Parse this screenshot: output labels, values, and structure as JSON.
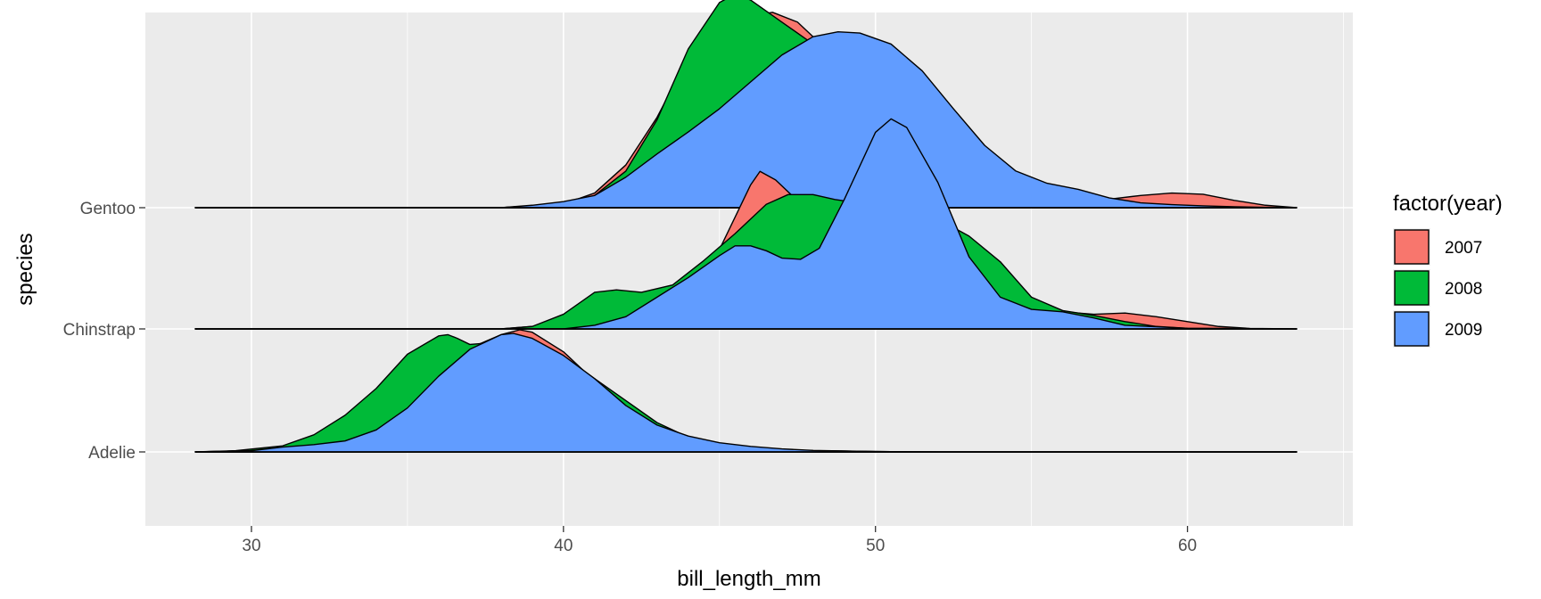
{
  "chart_data": {
    "type": "area",
    "subtype": "ridgeline-density",
    "title": "",
    "xlabel": "bill_length_mm",
    "ylabel": "species",
    "xlim": [
      26.6,
      65.3
    ],
    "x_ticks": [
      30,
      40,
      50,
      60
    ],
    "x_tick_labels": [
      "30",
      "40",
      "50",
      "60"
    ],
    "categories": [
      "Adelie",
      "Chinstrap",
      "Gentoo"
    ],
    "grid": true,
    "legend": {
      "title": "factor(year)",
      "position": "right"
    },
    "density_scale": 1.0,
    "series": [
      {
        "name": "2007",
        "color": "#F8766D"
      },
      {
        "name": "2008",
        "color": "#00BA38"
      },
      {
        "name": "2009",
        "color": "#619CFF"
      }
    ],
    "ridges": [
      {
        "category": "Adelie",
        "year": "2007",
        "range": [
          28.2,
          63.5
        ],
        "points": [
          [
            28.2,
            0
          ],
          [
            30,
            0.01
          ],
          [
            32,
            0.06
          ],
          [
            34,
            0.3
          ],
          [
            36,
            0.69
          ],
          [
            37,
            0.85
          ],
          [
            38,
            0.96
          ],
          [
            38.6,
            1.0
          ],
          [
            39,
            0.98
          ],
          [
            40,
            0.82
          ],
          [
            41,
            0.58
          ],
          [
            42,
            0.37
          ],
          [
            43,
            0.21
          ],
          [
            44,
            0.11
          ],
          [
            45,
            0.06
          ],
          [
            46,
            0.035
          ],
          [
            47,
            0.02
          ],
          [
            48,
            0.01
          ],
          [
            50,
            0.003
          ],
          [
            52,
            0
          ],
          [
            63.5,
            0
          ]
        ]
      },
      {
        "category": "Adelie",
        "year": "2008",
        "range": [
          28.2,
          63.5
        ],
        "points": [
          [
            28.2,
            0
          ],
          [
            29.5,
            0.01
          ],
          [
            31,
            0.05
          ],
          [
            32,
            0.14
          ],
          [
            33,
            0.3
          ],
          [
            34,
            0.52
          ],
          [
            35,
            0.8
          ],
          [
            36,
            0.95
          ],
          [
            36.3,
            0.96
          ],
          [
            36.6,
            0.93
          ],
          [
            37,
            0.88
          ],
          [
            38,
            0.9
          ],
          [
            39,
            0.88
          ],
          [
            40,
            0.78
          ],
          [
            41,
            0.6
          ],
          [
            42,
            0.42
          ],
          [
            43,
            0.24
          ],
          [
            44,
            0.12
          ],
          [
            45,
            0.06
          ],
          [
            46,
            0.035
          ],
          [
            47,
            0.02
          ],
          [
            48,
            0.01
          ],
          [
            50,
            0.003
          ],
          [
            52,
            0
          ],
          [
            63.5,
            0
          ]
        ]
      },
      {
        "category": "Adelie",
        "year": "2009",
        "range": [
          28.2,
          63.5
        ],
        "points": [
          [
            28.2,
            0
          ],
          [
            30,
            0.01
          ],
          [
            31,
            0.04
          ],
          [
            32,
            0.06
          ],
          [
            33,
            0.09
          ],
          [
            34,
            0.18
          ],
          [
            35,
            0.36
          ],
          [
            36,
            0.62
          ],
          [
            37,
            0.84
          ],
          [
            38,
            0.96
          ],
          [
            38.4,
            0.97
          ],
          [
            39,
            0.93
          ],
          [
            40,
            0.79
          ],
          [
            41,
            0.6
          ],
          [
            42,
            0.38
          ],
          [
            43,
            0.22
          ],
          [
            44,
            0.13
          ],
          [
            45,
            0.075
          ],
          [
            46,
            0.045
          ],
          [
            47,
            0.025
          ],
          [
            48,
            0.012
          ],
          [
            50,
            0.003
          ],
          [
            52,
            0
          ],
          [
            63.5,
            0
          ]
        ]
      },
      {
        "category": "Chinstrap",
        "year": "2007",
        "range": [
          28.2,
          63.5
        ],
        "points": [
          [
            28.2,
            0
          ],
          [
            38,
            0
          ],
          [
            39,
            0.02
          ],
          [
            40,
            0.06
          ],
          [
            41,
            0.1
          ],
          [
            42,
            0.12
          ],
          [
            43,
            0.2
          ],
          [
            44,
            0.35
          ],
          [
            45,
            0.65
          ],
          [
            46,
            1.18
          ],
          [
            46.3,
            1.29
          ],
          [
            46.8,
            1.22
          ],
          [
            47.5,
            1.05
          ],
          [
            48.5,
            1.0
          ],
          [
            49.5,
            0.97
          ],
          [
            50.3,
            0.98
          ],
          [
            51,
            1.03
          ],
          [
            52,
            0.98
          ],
          [
            53,
            0.68
          ],
          [
            54,
            0.38
          ],
          [
            55,
            0.18
          ],
          [
            56,
            0.14
          ],
          [
            57,
            0.12
          ],
          [
            58,
            0.13
          ],
          [
            59,
            0.1
          ],
          [
            60,
            0.06
          ],
          [
            61,
            0.02
          ],
          [
            62,
            0.004
          ],
          [
            63.5,
            0
          ]
        ]
      },
      {
        "category": "Chinstrap",
        "year": "2008",
        "range": [
          28.2,
          63.5
        ],
        "points": [
          [
            28.2,
            0
          ],
          [
            38,
            0
          ],
          [
            39,
            0.02
          ],
          [
            40,
            0.12
          ],
          [
            41,
            0.3
          ],
          [
            41.7,
            0.32
          ],
          [
            42.5,
            0.3
          ],
          [
            43.5,
            0.36
          ],
          [
            44.5,
            0.56
          ],
          [
            45.5,
            0.78
          ],
          [
            46.5,
            1.02
          ],
          [
            47.2,
            1.1
          ],
          [
            48,
            1.1
          ],
          [
            48.7,
            1.06
          ],
          [
            49.5,
            1.03
          ],
          [
            50.3,
            1.0
          ],
          [
            51,
            0.96
          ],
          [
            52,
            0.9
          ],
          [
            53,
            0.76
          ],
          [
            54,
            0.55
          ],
          [
            55,
            0.26
          ],
          [
            56,
            0.15
          ],
          [
            57,
            0.11
          ],
          [
            58,
            0.06
          ],
          [
            59,
            0.02
          ],
          [
            60,
            0.005
          ],
          [
            63.5,
            0
          ]
        ]
      },
      {
        "category": "Chinstrap",
        "year": "2009",
        "range": [
          28.2,
          63.5
        ],
        "points": [
          [
            28.2,
            0
          ],
          [
            40,
            0
          ],
          [
            41,
            0.03
          ],
          [
            42,
            0.1
          ],
          [
            43,
            0.26
          ],
          [
            44,
            0.42
          ],
          [
            45,
            0.6
          ],
          [
            45.5,
            0.68
          ],
          [
            46,
            0.68
          ],
          [
            46.5,
            0.64
          ],
          [
            47,
            0.58
          ],
          [
            47.6,
            0.57
          ],
          [
            48.2,
            0.66
          ],
          [
            49,
            1.06
          ],
          [
            50,
            1.61
          ],
          [
            50.5,
            1.72
          ],
          [
            51,
            1.65
          ],
          [
            52,
            1.2
          ],
          [
            53,
            0.59
          ],
          [
            54,
            0.26
          ],
          [
            55,
            0.16
          ],
          [
            56,
            0.14
          ],
          [
            57,
            0.09
          ],
          [
            58,
            0.03
          ],
          [
            60,
            0.005
          ],
          [
            63.5,
            0
          ]
        ]
      },
      {
        "category": "Gentoo",
        "year": "2007",
        "range": [
          28.2,
          63.5
        ],
        "points": [
          [
            28.2,
            0
          ],
          [
            38,
            0
          ],
          [
            40,
            0.03
          ],
          [
            41,
            0.12
          ],
          [
            42,
            0.35
          ],
          [
            43,
            0.74
          ],
          [
            44,
            1.23
          ],
          [
            45,
            1.59
          ],
          [
            46,
            1.57
          ],
          [
            46.7,
            1.6
          ],
          [
            47.5,
            1.52
          ],
          [
            48.5,
            1.28
          ],
          [
            49.5,
            1.05
          ],
          [
            50.5,
            0.85
          ],
          [
            51.5,
            0.63
          ],
          [
            52.5,
            0.42
          ],
          [
            53.5,
            0.26
          ],
          [
            54.5,
            0.18
          ],
          [
            55.5,
            0.14
          ],
          [
            56.5,
            0.09
          ],
          [
            57.5,
            0.07
          ],
          [
            58.5,
            0.1
          ],
          [
            59.5,
            0.12
          ],
          [
            60.5,
            0.11
          ],
          [
            61.5,
            0.06
          ],
          [
            62.5,
            0.02
          ],
          [
            63.5,
            0
          ]
        ]
      },
      {
        "category": "Gentoo",
        "year": "2008",
        "range": [
          28.2,
          63.5
        ],
        "points": [
          [
            28.2,
            0
          ],
          [
            38,
            0
          ],
          [
            40,
            0.03
          ],
          [
            41,
            0.1
          ],
          [
            42,
            0.3
          ],
          [
            43,
            0.72
          ],
          [
            44,
            1.3
          ],
          [
            45,
            1.68
          ],
          [
            45.5,
            1.75
          ],
          [
            46,
            1.7
          ],
          [
            47,
            1.52
          ],
          [
            48,
            1.34
          ],
          [
            49,
            1.1
          ],
          [
            50,
            0.85
          ],
          [
            51,
            0.6
          ],
          [
            52,
            0.38
          ],
          [
            53,
            0.22
          ],
          [
            54,
            0.12
          ],
          [
            55,
            0.08
          ],
          [
            56,
            0.04
          ],
          [
            57,
            0.015
          ],
          [
            58,
            0
          ],
          [
            63.5,
            0
          ]
        ]
      },
      {
        "category": "Gentoo",
        "year": "2009",
        "range": [
          28.2,
          63.5
        ],
        "points": [
          [
            28.2,
            0
          ],
          [
            38,
            0
          ],
          [
            39,
            0.02
          ],
          [
            40,
            0.05
          ],
          [
            41,
            0.1
          ],
          [
            42,
            0.25
          ],
          [
            43,
            0.44
          ],
          [
            44,
            0.62
          ],
          [
            45,
            0.81
          ],
          [
            46,
            1.03
          ],
          [
            47,
            1.25
          ],
          [
            48,
            1.4
          ],
          [
            48.8,
            1.44
          ],
          [
            49.5,
            1.43
          ],
          [
            50.5,
            1.34
          ],
          [
            51.5,
            1.12
          ],
          [
            52.5,
            0.81
          ],
          [
            53.5,
            0.51
          ],
          [
            54.5,
            0.3
          ],
          [
            55.5,
            0.2
          ],
          [
            56.5,
            0.15
          ],
          [
            57.5,
            0.08
          ],
          [
            58.5,
            0.04
          ],
          [
            59.5,
            0.025
          ],
          [
            60.5,
            0.015
          ],
          [
            61.5,
            0.008
          ],
          [
            62.5,
            0.003
          ],
          [
            63.5,
            0
          ]
        ]
      }
    ]
  }
}
